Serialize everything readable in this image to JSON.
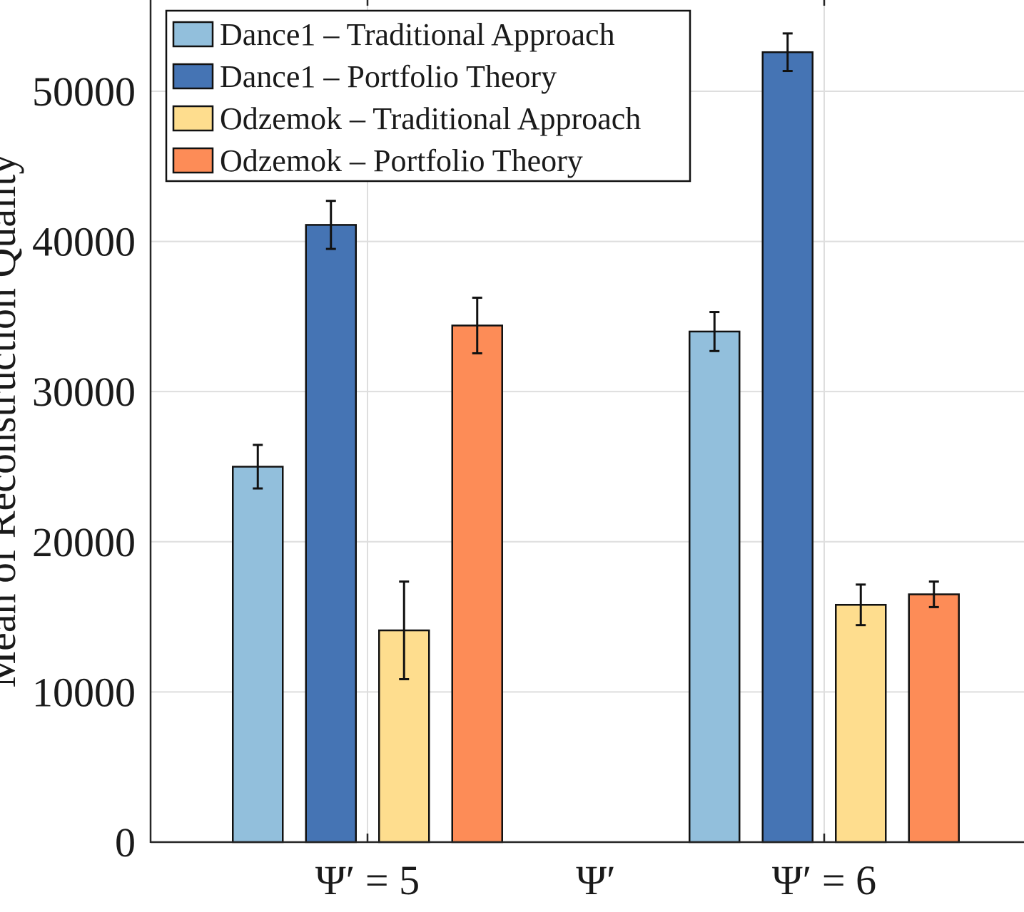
{
  "chart_data": {
    "type": "bar",
    "title": "",
    "xlabel": "Ψ′",
    "ylabel": "Mean of Reconstruction Quality",
    "categories": [
      "Ψ′ = 5",
      "Ψ′ = 6"
    ],
    "ylim": [
      0,
      57500
    ],
    "yticks": [
      0,
      10000,
      20000,
      30000,
      40000,
      50000
    ],
    "ytick_labels": [
      "0",
      "10000",
      "20000",
      "30000",
      "40000",
      "50000"
    ],
    "grid": true,
    "legend_position": "top-left",
    "series": [
      {
        "name": "Dance1 – Traditional Approach",
        "color": "#92bfdc",
        "values": [
          25000,
          34000
        ],
        "errors": [
          1450,
          1300
        ]
      },
      {
        "name": "Dance1 – Portfolio Theory",
        "color": "#4574b4",
        "values": [
          41100,
          52600
        ],
        "errors": [
          1600,
          1250
        ]
      },
      {
        "name": "Odzemok – Traditional Approach",
        "color": "#fedd8e",
        "values": [
          14100,
          15800
        ],
        "errors": [
          3250,
          1350
        ]
      },
      {
        "name": "Odzemok – Portfolio Theory",
        "color": "#fd8c57",
        "values": [
          34400,
          16500
        ],
        "errors": [
          1850,
          850
        ]
      }
    ]
  }
}
